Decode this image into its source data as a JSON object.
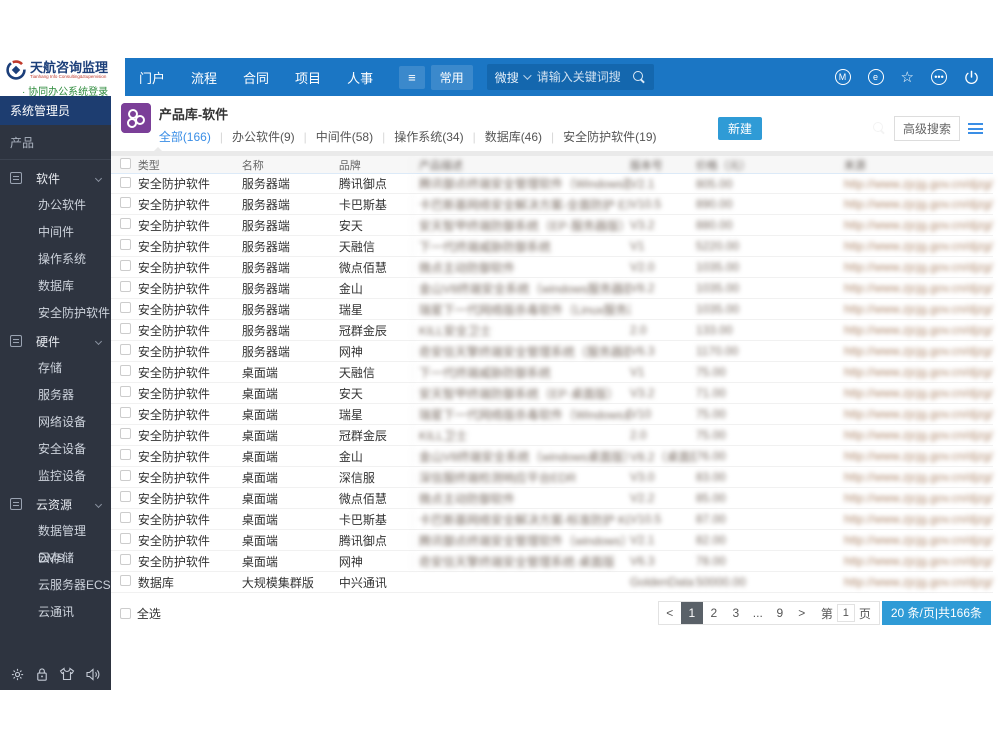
{
  "brand": {
    "title": "天航咨询监理",
    "subtitle": "Tianhang Info Consulting&Supervision",
    "login": "· 协同办公系统登录"
  },
  "topnav": {
    "items": [
      "门户",
      "流程",
      "合同",
      "项目",
      "人事"
    ],
    "hamburger": "≡",
    "pinned": "常用",
    "search_scope": "微搜",
    "search_placeholder": "请输入关键词搜"
  },
  "top_icons": [
    "M",
    "e",
    "star",
    "more",
    "power"
  ],
  "sidebar": {
    "role": "系统管理员",
    "section": "产品",
    "groups": [
      {
        "label": "软件",
        "children": [
          "办公软件",
          "中间件",
          "操作系统",
          "数据库",
          "安全防护软件"
        ]
      },
      {
        "label": "硬件",
        "children": [
          "存储",
          "服务器",
          "网络设备",
          "安全设备",
          "监控设备"
        ]
      },
      {
        "label": "云资源",
        "children": [
          "数据管理DMS",
          "云存储",
          "云服务器ECS",
          "云通讯"
        ]
      }
    ]
  },
  "content": {
    "title": "产品库-软件",
    "tabs": [
      "全部(166)",
      "办公软件(9)",
      "中间件(58)",
      "操作系统(34)",
      "数据库(46)",
      "安全防护软件(19)"
    ],
    "active_tab": 0,
    "new_button": "新建",
    "advanced_search": "高级搜索"
  },
  "table": {
    "headers": [
      "类型",
      "名称",
      "品牌",
      "产品描述",
      "版本号",
      "价格（元）",
      "来源"
    ],
    "blurred_headers": [
      false,
      false,
      false,
      true,
      true,
      true,
      true
    ],
    "rows": [
      {
        "type": "安全防护软件",
        "name": "服务器端",
        "brand": "腾讯御点",
        "desc": "腾讯御点终端安全管理软件（Windows版）",
        "version": "V2.1",
        "price": "805.00",
        "source": "http://www.zjcjg.gov.cn/djzg/"
      },
      {
        "type": "安全防护软件",
        "name": "服务器端",
        "brand": "卡巴斯基",
        "desc": "卡巴斯基网络安全解决方案-全面防护 EX",
        "version": "V10.5",
        "price": "890.00",
        "source": "http://www.zjcjg.gov.cn/djzg/"
      },
      {
        "type": "安全防护软件",
        "name": "服务器端",
        "brand": "安天",
        "desc": "安天智甲终端防御系统（EP·服务器版）",
        "version": "V3.2",
        "price": "880.00",
        "source": "http://www.zjcjg.gov.cn/djzg/"
      },
      {
        "type": "安全防护软件",
        "name": "服务器端",
        "brand": "天融信",
        "desc": "下一代终端威胁防御系统",
        "version": "V1",
        "price": "5220.00",
        "source": "http://www.zjcjg.gov.cn/djzg/"
      },
      {
        "type": "安全防护软件",
        "name": "服务器端",
        "brand": "微点佰慧",
        "desc": "微点主动防御软件",
        "version": "V2.0",
        "price": "1035.00",
        "source": "http://www.zjcjg.gov.cn/djzg/"
      },
      {
        "type": "安全防护软件",
        "name": "服务器端",
        "brand": "金山",
        "desc": "金山V8终端安全系统（windows服务器版）",
        "version": "V8.2",
        "price": "1035.00",
        "source": "http://www.zjcjg.gov.cn/djzg/"
      },
      {
        "type": "安全防护软件",
        "name": "服务器端",
        "brand": "瑞星",
        "desc": "瑞星下一代网络版杀毒软件（Linux服务器）",
        "version": "",
        "price": "1035.00",
        "source": "http://www.zjcjg.gov.cn/djzg/"
      },
      {
        "type": "安全防护软件",
        "name": "服务器端",
        "brand": "冠群金辰",
        "desc": "KILL安全卫士",
        "version": "2.0",
        "price": "133.00",
        "source": "http://www.zjcjg.gov.cn/djzg/"
      },
      {
        "type": "安全防护软件",
        "name": "服务器端",
        "brand": "网神",
        "desc": "奇安信天擎终端安全管理系统（服务器版）",
        "version": "V6.3",
        "price": "1170.00",
        "source": "http://www.zjcjg.gov.cn/djzg/"
      },
      {
        "type": "安全防护软件",
        "name": "桌面端",
        "brand": "天融信",
        "desc": "下一代终端威胁防御系统",
        "version": "V1",
        "price": "75.00",
        "source": "http://www.zjcjg.gov.cn/djzg/"
      },
      {
        "type": "安全防护软件",
        "name": "桌面端",
        "brand": "安天",
        "desc": "安天智甲终端防御系统（EP·桌面版）",
        "version": "V3.2",
        "price": "71.00",
        "source": "http://www.zjcjg.gov.cn/djzg/"
      },
      {
        "type": "安全防护软件",
        "name": "桌面端",
        "brand": "瑞星",
        "desc": "瑞星下一代网络版杀毒软件（Windows桌面版）",
        "version": "V10",
        "price": "75.00",
        "source": "http://www.zjcjg.gov.cn/djzg/"
      },
      {
        "type": "安全防护软件",
        "name": "桌面端",
        "brand": "冠群金辰",
        "desc": "KILL卫士",
        "version": "2.0",
        "price": "75.00",
        "source": "http://www.zjcjg.gov.cn/djzg/"
      },
      {
        "type": "安全防护软件",
        "name": "桌面端",
        "brand": "金山",
        "desc": "金山V8终端安全系统（windows桌面版）",
        "version": "V8.2（桌面版）",
        "price": "76.00",
        "source": "http://www.zjcjg.gov.cn/djzg/"
      },
      {
        "type": "安全防护软件",
        "name": "桌面端",
        "brand": "深信服",
        "desc": "深信服终端检测响应平台EDR",
        "version": "V3.0",
        "price": "83.00",
        "source": "http://www.zjcjg.gov.cn/djzg/"
      },
      {
        "type": "安全防护软件",
        "name": "桌面端",
        "brand": "微点佰慧",
        "desc": "微点主动防御软件",
        "version": "V2.2",
        "price": "85.00",
        "source": "http://www.zjcjg.gov.cn/djzg/"
      },
      {
        "type": "安全防护软件",
        "name": "桌面端",
        "brand": "卡巴斯基",
        "desc": "卡巴斯基网络安全解决方案-标准防护 KL",
        "version": "V10.5",
        "price": "87.00",
        "source": "http://www.zjcjg.gov.cn/djzg/"
      },
      {
        "type": "安全防护软件",
        "name": "桌面端",
        "brand": "腾讯御点",
        "desc": "腾讯御点终端安全管理软件（windows）V2.1",
        "version": "V2.1",
        "price": "82.00",
        "source": "http://www.zjcjg.gov.cn/djzg/"
      },
      {
        "type": "安全防护软件",
        "name": "桌面端",
        "brand": "网神",
        "desc": "奇安信天擎终端安全管理系统·桌面版",
        "version": "V6.3",
        "price": "78.00",
        "source": "http://www.zjcjg.gov.cn/djzg/"
      },
      {
        "type": "数据库",
        "name": "大规模集群版",
        "brand": "中兴通讯",
        "desc": "",
        "version": "GoldenData s...",
        "price": "50000.00",
        "source": "http://www.zjcjg.gov.cn/djzg/"
      }
    ]
  },
  "footer": {
    "select_all": "全选",
    "pager": {
      "prev": "<",
      "pages": [
        "1",
        "2",
        "3",
        "...",
        "9"
      ],
      "active_page": "1",
      "next": ">",
      "jump_prefix": "第",
      "jump_page": "1",
      "jump_suffix": "页",
      "summary": "20 条/页|共166条"
    }
  },
  "colors": {
    "topbar": "#1b76c4",
    "accent": "#2f9bd6",
    "active_tab": "#3a8ee6",
    "sidebar_bg": "#2e3440",
    "role_bar": "#1d3d70",
    "app_icon": "#7b3f98"
  }
}
